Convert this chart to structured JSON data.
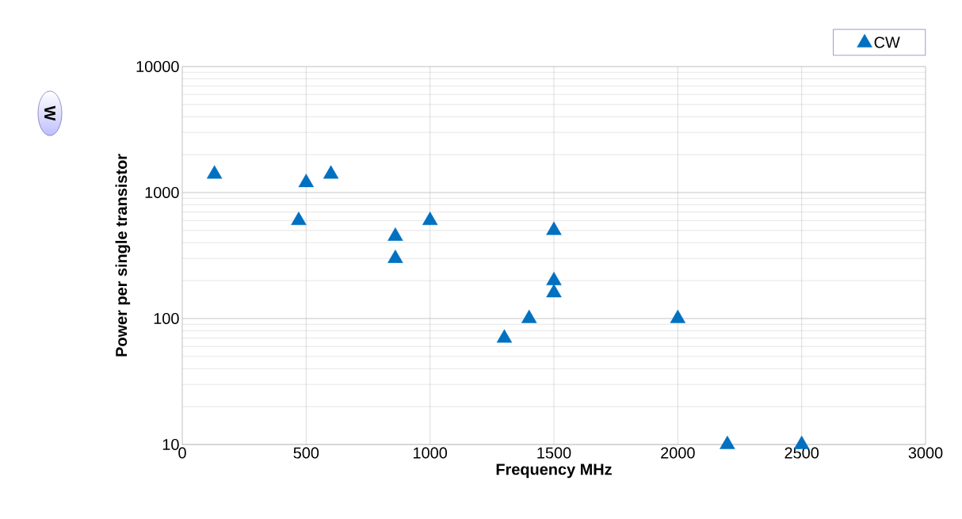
{
  "chart_data": {
    "type": "scatter",
    "xlabel": "Frequency MHz",
    "ylabel": "Power per single transistor",
    "annotations": [
      "W"
    ],
    "series": [
      {
        "name": "CW",
        "color": "#0070c0",
        "x": [
          130,
          470,
          500,
          600,
          860,
          860,
          1000,
          1500,
          1500,
          1500,
          1400,
          1300,
          2000,
          2200,
          2500
        ],
        "values": [
          1400,
          600,
          1200,
          1400,
          450,
          300,
          600,
          500,
          200,
          160,
          100,
          70,
          100,
          10,
          10
        ]
      }
    ],
    "xlim": [
      0,
      3000
    ],
    "xticks": [
      0,
      500,
      1000,
      1500,
      2000,
      2500,
      3000
    ],
    "ylim": [
      10,
      10000
    ],
    "yticks": [
      10,
      100,
      1000,
      10000
    ],
    "log": "y",
    "grid": true,
    "legend": "top right",
    "marker": "triangle"
  }
}
